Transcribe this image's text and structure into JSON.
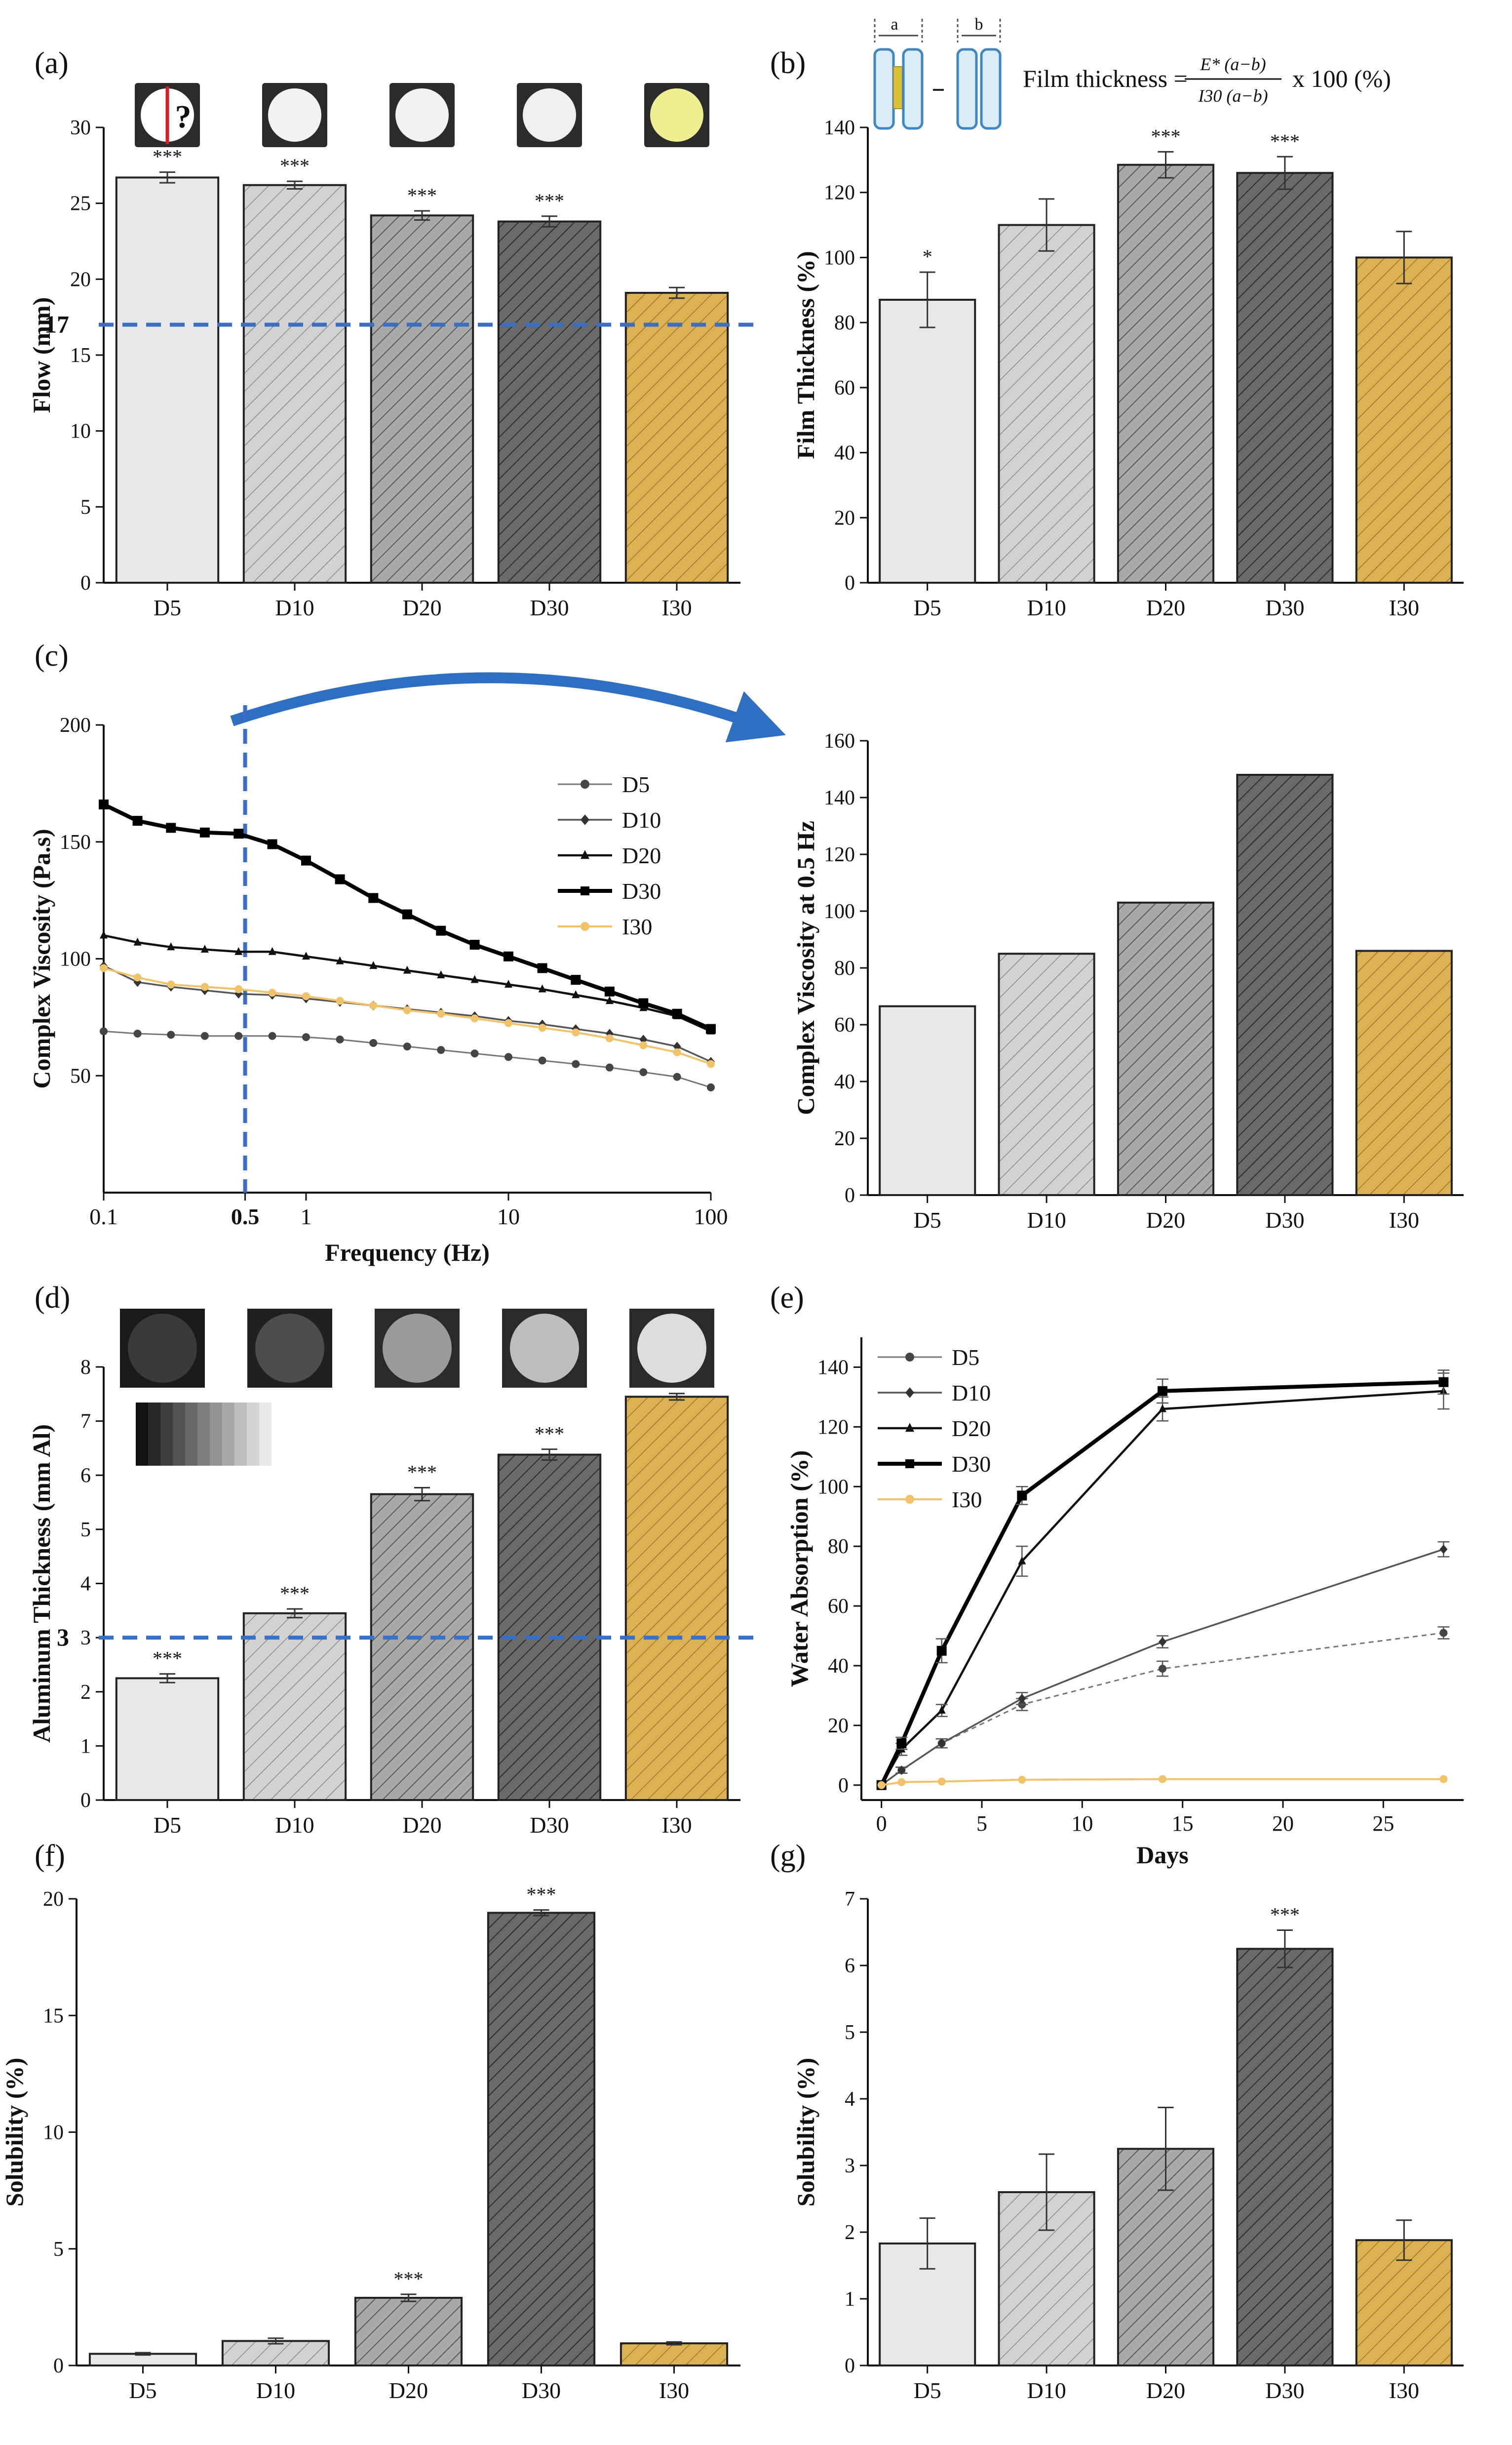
{
  "colors": {
    "D5": "#e8e8e8",
    "D10": "#d2d2d2",
    "D20": "#a9a9a9",
    "D30": "#6a6a6a",
    "I30": "#dbb253",
    "dashed": "#3a6fc4",
    "arrow": "#2f6fc2",
    "I30_line": "#f0c36b"
  },
  "figure_text": {
    "film_formula_prefix": "Film thickness =",
    "film_formula_num": "E* (a−b)",
    "film_formula_den": "I30 (a−b)",
    "film_formula_suffix": "x 100 (%)",
    "inset_a": "a",
    "inset_b": "b",
    "question_mark": "?"
  },
  "chart_data": [
    {
      "id": "a",
      "panel_label": "(a)",
      "type": "bar",
      "categories": [
        "D5",
        "D10",
        "D20",
        "D30",
        "I30"
      ],
      "values": [
        26.7,
        26.2,
        24.2,
        23.8,
        19.1
      ],
      "errors": [
        0.35,
        0.25,
        0.3,
        0.35,
        0.35
      ],
      "significance": [
        "***",
        "***",
        "***",
        "***",
        ""
      ],
      "ylabel": "Flow (mm)",
      "xlabel": "",
      "ylim": [
        0,
        30
      ],
      "yticks": [
        0,
        5,
        10,
        15,
        20,
        25,
        30
      ],
      "reference_line": 17,
      "reference_label": "17"
    },
    {
      "id": "b",
      "panel_label": "(b)",
      "type": "bar",
      "categories": [
        "D5",
        "D10",
        "D20",
        "D30",
        "I30"
      ],
      "values": [
        87,
        110,
        128.5,
        126,
        100
      ],
      "errors": [
        8.5,
        8,
        4,
        5,
        8
      ],
      "significance": [
        "*",
        "",
        "***",
        "***",
        ""
      ],
      "ylabel": "Film Thickness (%)",
      "xlabel": "",
      "ylim": [
        0,
        140
      ],
      "yticks": [
        0,
        20,
        40,
        60,
        80,
        100,
        120,
        140
      ]
    },
    {
      "id": "c1",
      "panel_label": "(c)",
      "type": "line",
      "xscale": "log",
      "xlim": [
        0.1,
        100
      ],
      "xticks": [
        "0.1",
        "0.5",
        "1",
        "10",
        "100"
      ],
      "xtick_values": [
        0.1,
        0.5,
        1,
        10,
        100
      ],
      "ylim": [
        0,
        200
      ],
      "yticks": [
        50,
        100,
        150,
        200
      ],
      "xlabel": "Frequency (Hz)",
      "ylabel": "Complex Viscosity (Pa.s)",
      "reference_x": 0.5,
      "x": [
        0.1,
        0.147,
        0.215,
        0.316,
        0.464,
        0.681,
        1.0,
        1.47,
        2.15,
        3.16,
        4.64,
        6.81,
        10,
        14.7,
        21.5,
        31.6,
        46.4,
        68.1,
        100
      ],
      "series": [
        {
          "name": "D5",
          "marker": "circle",
          "values": [
            69,
            68,
            67.5,
            67,
            67,
            67,
            66.5,
            65.5,
            64,
            62.5,
            61,
            59.5,
            58,
            56.5,
            55,
            53.5,
            51.5,
            49.5,
            45
          ]
        },
        {
          "name": "D10",
          "marker": "diamond",
          "values": [
            97,
            90,
            88,
            86.5,
            85,
            84.5,
            83,
            81.5,
            80,
            78.5,
            77,
            75.5,
            73.5,
            72,
            70,
            68,
            65.5,
            62.5,
            56
          ]
        },
        {
          "name": "D20",
          "marker": "triangle",
          "values": [
            110,
            107,
            105,
            104,
            103,
            103,
            101,
            99,
            97,
            95,
            93,
            91,
            89,
            87,
            84.5,
            82,
            79,
            75.5,
            69
          ]
        },
        {
          "name": "D30",
          "marker": "square",
          "values": [
            166,
            159,
            156,
            154,
            153.5,
            149,
            142,
            134,
            126,
            119,
            112,
            106,
            101,
            96,
            91,
            86,
            81,
            76.5,
            70
          ]
        },
        {
          "name": "I30",
          "marker": "circle",
          "values": [
            96,
            92,
            89,
            88,
            87,
            85.5,
            84,
            82,
            80,
            78,
            76.5,
            74.5,
            72.5,
            70.5,
            68.5,
            66,
            63,
            60,
            55
          ]
        }
      ]
    },
    {
      "id": "c2",
      "panel_label": "",
      "type": "bar",
      "categories": [
        "D5",
        "D10",
        "D20",
        "D30",
        "I30"
      ],
      "values": [
        66.5,
        85,
        103,
        148,
        86
      ],
      "errors": [
        0,
        0,
        0,
        0,
        0
      ],
      "significance": [
        "",
        "",
        "",
        "",
        ""
      ],
      "ylabel": "Complex Viscosity at 0.5 Hz",
      "xlabel": "",
      "ylim": [
        0,
        160
      ],
      "yticks": [
        0,
        20,
        40,
        60,
        80,
        100,
        120,
        140,
        160
      ]
    },
    {
      "id": "d",
      "panel_label": "(d)",
      "type": "bar",
      "categories": [
        "D5",
        "D10",
        "D20",
        "D30",
        "I30"
      ],
      "values": [
        2.25,
        3.45,
        5.65,
        6.38,
        7.45
      ],
      "errors": [
        0.08,
        0.08,
        0.12,
        0.1,
        0.06
      ],
      "significance": [
        "***",
        "***",
        "***",
        "***",
        ""
      ],
      "ylabel": "Aluminum Thickness (mm Al)",
      "xlabel": "",
      "ylim": [
        0,
        8
      ],
      "yticks": [
        0,
        1,
        2,
        3,
        4,
        5,
        6,
        7,
        8
      ],
      "reference_line": 3,
      "reference_label": "3"
    },
    {
      "id": "e",
      "panel_label": "(e)",
      "type": "line",
      "xlim": [
        -1,
        29
      ],
      "xticks": [
        0,
        5,
        10,
        15,
        20,
        25
      ],
      "ylim": [
        -5,
        150
      ],
      "yticks": [
        0,
        20,
        40,
        60,
        80,
        100,
        120,
        140
      ],
      "xlabel": "Days",
      "ylabel": "Water Absorption (%)",
      "x": [
        0,
        1,
        3,
        7,
        14,
        28
      ],
      "series": [
        {
          "name": "D5",
          "marker": "circle",
          "values": [
            0,
            5,
            14,
            27,
            39,
            51
          ],
          "errors": [
            0,
            1,
            1.5,
            2,
            2.5,
            2
          ]
        },
        {
          "name": "D10",
          "marker": "diamond",
          "values": [
            0,
            5,
            14,
            29,
            48,
            79
          ],
          "errors": [
            0,
            1,
            1.5,
            2,
            2,
            2.5
          ]
        },
        {
          "name": "D20",
          "marker": "triangle",
          "values": [
            0,
            12,
            25,
            75,
            126,
            132
          ],
          "errors": [
            0,
            2,
            2,
            5,
            4,
            6
          ]
        },
        {
          "name": "D30",
          "marker": "square",
          "values": [
            0,
            14,
            45,
            97,
            132,
            135
          ],
          "errors": [
            0,
            2,
            4,
            3,
            4,
            4
          ]
        },
        {
          "name": "I30",
          "marker": "circle",
          "values": [
            0,
            1,
            1.2,
            1.8,
            2,
            2
          ],
          "errors": [
            0,
            0,
            0,
            0,
            0,
            0
          ]
        }
      ]
    },
    {
      "id": "f",
      "panel_label": "(f)",
      "type": "bar",
      "categories": [
        "D5",
        "D10",
        "D20",
        "D30",
        "I30"
      ],
      "values": [
        0.5,
        1.05,
        2.9,
        19.4,
        0.95
      ],
      "errors": [
        0.05,
        0.12,
        0.15,
        0.12,
        0.06
      ],
      "significance": [
        "",
        "",
        "***",
        "***",
        ""
      ],
      "ylabel": "Solubility (%)",
      "xlabel": "",
      "ylim": [
        0,
        20
      ],
      "yticks": [
        0,
        5,
        10,
        15,
        20
      ]
    },
    {
      "id": "g",
      "panel_label": "(g)",
      "type": "bar",
      "categories": [
        "D5",
        "D10",
        "D20",
        "D30",
        "I30"
      ],
      "values": [
        1.83,
        2.6,
        3.25,
        6.25,
        1.88
      ],
      "errors": [
        0.38,
        0.57,
        0.62,
        0.28,
        0.3
      ],
      "significance": [
        "",
        "",
        "",
        "***",
        ""
      ],
      "ylabel": "Solubility (%)",
      "xlabel": "",
      "ylim": [
        0,
        7
      ],
      "yticks": [
        0,
        1,
        2,
        3,
        4,
        5,
        6,
        7
      ]
    }
  ]
}
